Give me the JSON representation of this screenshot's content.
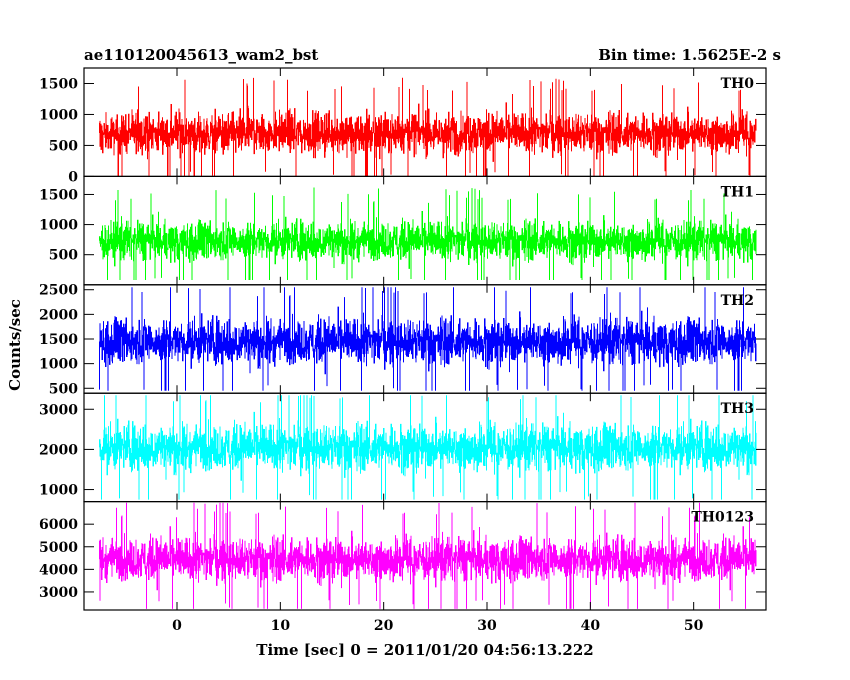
{
  "header": {
    "title": "ae110120045613_wam2_bst",
    "bin_time": "Bin time: 1.5625E-2 s"
  },
  "chart_data": {
    "type": "line",
    "xlabel": "Time [sec] 0 = 2011/01/20 04:56:13.222",
    "ylabel": "Counts/sec",
    "xlim": [
      -9,
      57
    ],
    "x_ticks": [
      0,
      10,
      20,
      30,
      40,
      50
    ],
    "data_x_range": [
      -7.5,
      56
    ],
    "panels": [
      {
        "name": "TH0",
        "color": "#ff0000",
        "ylim": [
          0,
          1750
        ],
        "y_ticks": [
          0,
          500,
          1000,
          1500
        ],
        "mean": 700,
        "spread": 560,
        "min": 0,
        "max": 1700
      },
      {
        "name": "TH1",
        "color": "#00ff00",
        "ylim": [
          0,
          1800
        ],
        "y_ticks": [
          500,
          1000,
          1500
        ],
        "mean": 730,
        "spread": 560,
        "min": 80,
        "max": 1750
      },
      {
        "name": "TH2",
        "color": "#0000ff",
        "ylim": [
          400,
          2600
        ],
        "y_ticks": [
          500,
          1000,
          1500,
          2000,
          2500
        ],
        "mean": 1450,
        "spread": 800,
        "min": 450,
        "max": 2550
      },
      {
        "name": "TH3",
        "color": "#00ffff",
        "ylim": [
          700,
          3400
        ],
        "y_ticks": [
          1000,
          2000,
          3000
        ],
        "mean": 2050,
        "spread": 1000,
        "min": 750,
        "max": 3350
      },
      {
        "name": "TH0123",
        "color": "#ff00ff",
        "ylim": [
          2200,
          7000
        ],
        "y_ticks": [
          3000,
          4000,
          5000,
          6000
        ],
        "mean": 4450,
        "spread": 1650,
        "min": 2250,
        "max": 6950
      }
    ]
  }
}
